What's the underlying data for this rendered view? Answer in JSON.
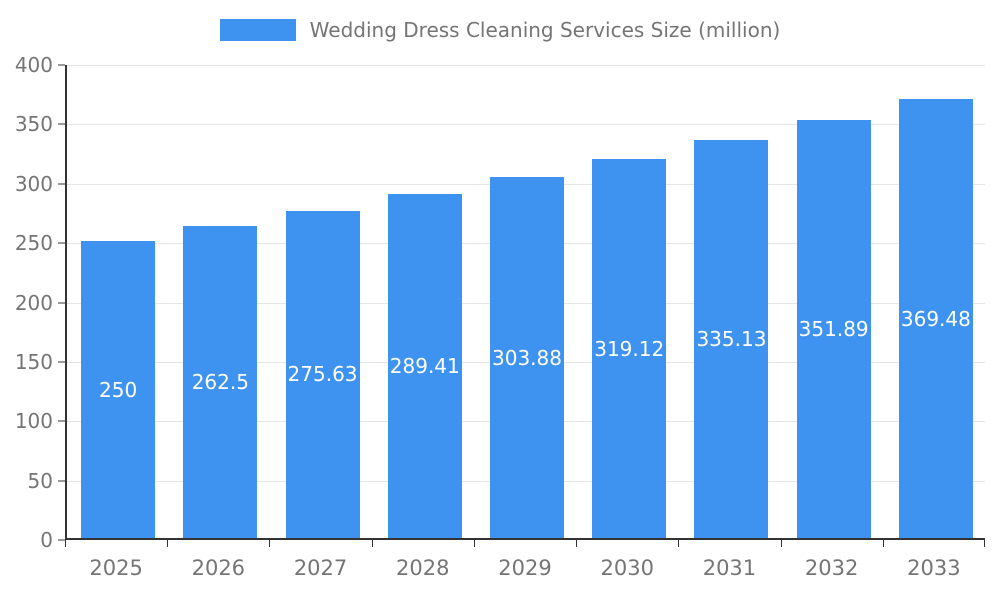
{
  "chart_data": {
    "type": "bar",
    "title": "Wedding Dress Cleaning Services Size (million)",
    "categories": [
      "2025",
      "2026",
      "2027",
      "2028",
      "2029",
      "2030",
      "2031",
      "2032",
      "2033"
    ],
    "values": [
      250,
      262.5,
      275.63,
      289.41,
      303.88,
      319.12,
      335.13,
      351.89,
      369.48
    ],
    "value_labels": [
      "250",
      "262.5",
      "275.63",
      "289.41",
      "303.88",
      "319.12",
      "335.13",
      "351.89",
      "369.48"
    ],
    "xlabel": "",
    "ylabel": "",
    "ylim": [
      0,
      400
    ],
    "yticks": [
      0,
      50,
      100,
      150,
      200,
      250,
      300,
      350,
      400
    ],
    "ytick_labels": [
      "0",
      "50",
      "100",
      "150",
      "200",
      "250",
      "300",
      "350",
      "400"
    ],
    "grid": true,
    "legend_position": "top",
    "bar_color": "#3e93f0",
    "value_label_color": "#ffffff",
    "axis_text_color": "#757575",
    "grid_color": "#e6e6e6",
    "axis_line_color": "#333333"
  }
}
